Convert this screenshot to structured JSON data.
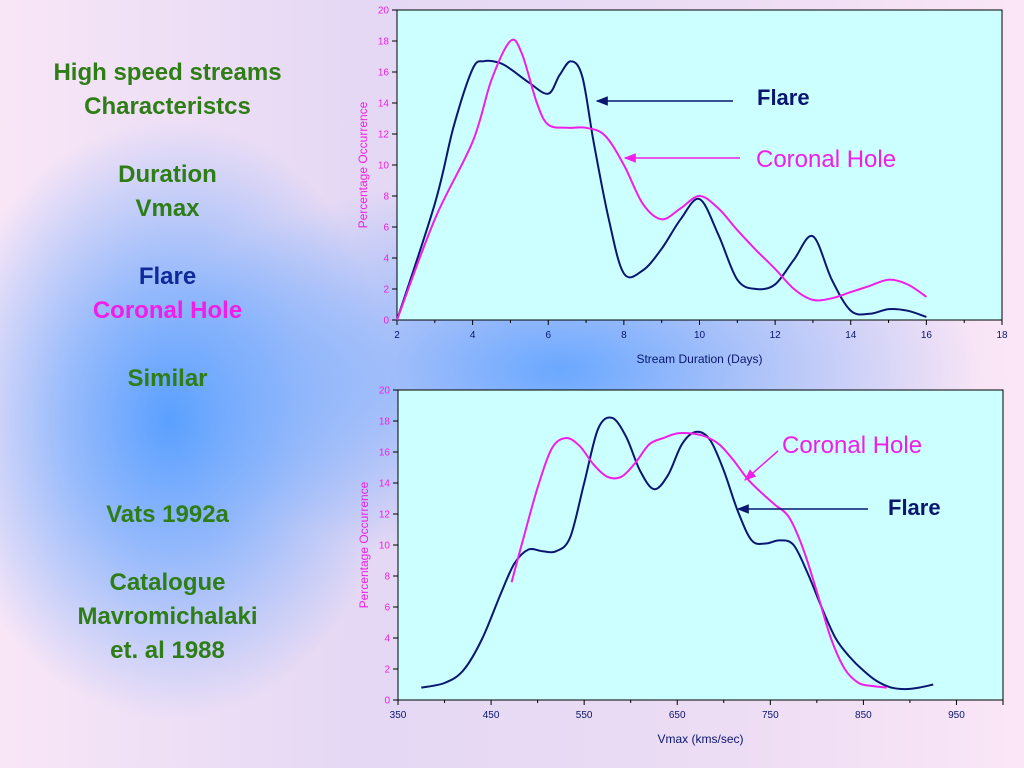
{
  "left_panel": {
    "title_lines": [
      "High speed streams",
      "Characteristcs"
    ],
    "params": [
      "Duration",
      "Vmax"
    ],
    "flare_label": "Flare",
    "coronal_label": "Coronal Hole",
    "conclusion": "Similar",
    "reference": "Vats 1992a",
    "catalogue_lines": [
      "Catalogue",
      "Mavromichalaki",
      "et. al 1988"
    ]
  },
  "colors": {
    "flare": "#0a1670",
    "coronal": "#f01ee6",
    "plot_bg": "#ccffff",
    "text_green": "#2e7d16"
  },
  "chart_data": [
    {
      "type": "line",
      "xlabel": "Stream Duration (Days)",
      "ylabel": "Percentage Occurrence",
      "xlim": [
        2,
        18
      ],
      "ylim": [
        0,
        20
      ],
      "x_ticks": [
        2,
        4,
        6,
        8,
        10,
        12,
        14,
        16,
        18
      ],
      "y_ticks": [
        0,
        2,
        4,
        6,
        8,
        10,
        12,
        14,
        16,
        18,
        20
      ],
      "legend_placement": "right",
      "series": [
        {
          "name": "Flare",
          "color_key": "flare",
          "x": [
            2,
            3,
            3.5,
            4,
            4.3,
            4.7,
            5,
            5.5,
            6,
            6.3,
            6.6,
            6.9,
            7.2,
            7.6,
            8,
            8.5,
            9,
            9.5,
            10,
            10.5,
            11,
            11.5,
            12,
            12.5,
            13,
            13.5,
            14,
            14.5,
            15,
            15.5,
            16
          ],
          "y": [
            0,
            7.5,
            12.5,
            16.2,
            16.7,
            16.6,
            16.2,
            15.3,
            14.6,
            15.8,
            16.7,
            15.7,
            11.5,
            6.5,
            3.0,
            3.2,
            4.6,
            6.5,
            7.8,
            5.5,
            2.6,
            2.0,
            2.3,
            3.9,
            5.4,
            2.6,
            0.6,
            0.4,
            0.7,
            0.6,
            0.2
          ]
        },
        {
          "name": "Coronal Hole",
          "color_key": "coronal",
          "x": [
            2,
            3,
            4,
            4.5,
            5,
            5.3,
            5.7,
            6,
            6.5,
            7,
            7.5,
            8,
            8.5,
            9,
            9.5,
            10,
            10.5,
            11,
            11.5,
            12,
            12.5,
            13,
            13.5,
            14,
            14.5,
            15,
            15.5,
            16
          ],
          "y": [
            0,
            6.5,
            11.5,
            15.5,
            18.0,
            17.2,
            14.0,
            12.6,
            12.4,
            12.4,
            11.9,
            10.0,
            7.5,
            6.5,
            7.2,
            8.0,
            7.2,
            5.8,
            4.5,
            3.3,
            2.0,
            1.3,
            1.4,
            1.8,
            2.2,
            2.6,
            2.3,
            1.5
          ]
        }
      ]
    },
    {
      "type": "line",
      "xlabel": "Vmax  (kms/sec)",
      "ylabel": "Percentage Occurrence",
      "xlim": [
        350,
        1000
      ],
      "ylim": [
        0,
        20
      ],
      "x_ticks": [
        350,
        450,
        550,
        650,
        750,
        850,
        950
      ],
      "y_ticks": [
        0,
        2,
        4,
        6,
        8,
        10,
        12,
        14,
        16,
        18,
        20
      ],
      "legend_placement": "top-right",
      "series": [
        {
          "name": "Flare",
          "color_key": "flare",
          "x": [
            375,
            400,
            420,
            440,
            460,
            475,
            490,
            505,
            520,
            535,
            550,
            565,
            580,
            595,
            610,
            625,
            640,
            655,
            670,
            685,
            700,
            715,
            730,
            745,
            760,
            775,
            790,
            805,
            820,
            835,
            850,
            865,
            880,
            895,
            910,
            925
          ],
          "y": [
            0.8,
            1.1,
            1.9,
            3.9,
            6.8,
            8.8,
            9.7,
            9.6,
            9.6,
            10.5,
            14.0,
            17.5,
            18.2,
            17.0,
            14.8,
            13.6,
            14.5,
            16.5,
            17.3,
            16.8,
            14.8,
            12.2,
            10.3,
            10.1,
            10.3,
            10.0,
            8.2,
            6.0,
            4.0,
            2.8,
            1.9,
            1.2,
            0.8,
            0.7,
            0.8,
            1.0
          ]
        },
        {
          "name": "Coronal Hole",
          "color_key": "coronal",
          "x": [
            472,
            485,
            500,
            515,
            530,
            545,
            560,
            575,
            590,
            605,
            620,
            635,
            650,
            665,
            680,
            695,
            710,
            725,
            740,
            755,
            770,
            785,
            800,
            815,
            830,
            845,
            860,
            875
          ],
          "y": [
            7.6,
            10.5,
            13.7,
            16.2,
            16.9,
            16.4,
            15.2,
            14.4,
            14.4,
            15.3,
            16.5,
            16.9,
            17.2,
            17.2,
            17.0,
            16.5,
            15.5,
            14.3,
            13.4,
            12.6,
            11.8,
            9.8,
            7.0,
            4.0,
            2.0,
            1.1,
            0.9,
            0.8
          ]
        }
      ]
    }
  ]
}
